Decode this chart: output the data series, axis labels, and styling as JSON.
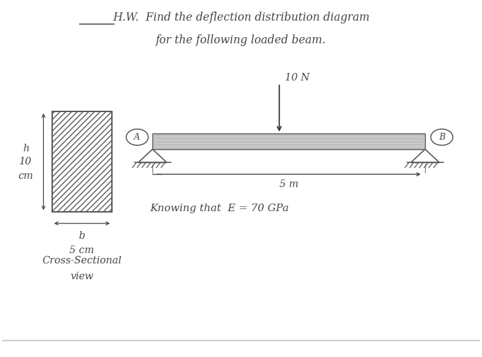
{
  "bg_color": "#ffffff",
  "title_line1": "H.W.  Find the deflection distribution diagram",
  "title_line2": "for the following loaded beam.",
  "load_label": "10 N",
  "span_label": "5 m",
  "e_label": "Knowing that  E = 70 GPa",
  "cross_section_label1": "Cross-Sectional",
  "cross_section_label2": "view",
  "h_label_h": "h",
  "h_label_10": "10",
  "h_label_cm": "cm",
  "b_label": "b",
  "b_dim_label": "5 cm",
  "A_label": "A",
  "B_label": "B",
  "figsize": [
    7.02,
    5.19
  ],
  "dpi": 100,
  "separator_color": "#cccccc",
  "text_color": "#444444",
  "beam_color": "#c8c8c8",
  "beam_edge_color": "#555555",
  "support_color": "#555555",
  "arrow_color": "#333333"
}
